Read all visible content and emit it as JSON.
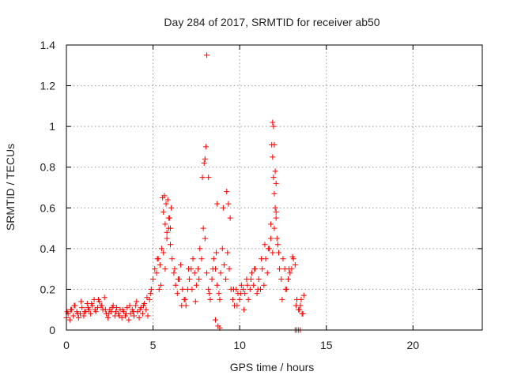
{
  "chart_data": {
    "type": "scatter",
    "title": "Day 284 of 2017, SRMTID for receiver ab50",
    "xlabel": "GPS time / hours",
    "ylabel": "SRMTID / TECUs",
    "xlim": [
      0,
      24
    ],
    "ylim": [
      0,
      1.4
    ],
    "xticks": [
      0,
      5,
      10,
      15,
      20
    ],
    "yticks": [
      0,
      0.2,
      0.4,
      0.6,
      0.8,
      1,
      1.2,
      1.4
    ],
    "xtick_labels": [
      "0",
      "5",
      "10",
      "15",
      "20"
    ],
    "ytick_labels": [
      "0",
      "0.2",
      "0.4",
      "0.6",
      "0.8",
      "1",
      "1.2",
      "1.4"
    ],
    "grid": true,
    "marker": "+",
    "color": "#ff0000",
    "series": [
      {
        "name": "SRMTID",
        "x": [
          0.0,
          0.1,
          0.2,
          0.3,
          0.4,
          0.5,
          0.6,
          0.7,
          0.8,
          0.9,
          1.0,
          1.1,
          1.2,
          1.3,
          1.4,
          1.5,
          1.6,
          1.7,
          1.8,
          1.9,
          2.0,
          2.1,
          2.2,
          2.3,
          2.4,
          2.5,
          2.6,
          2.7,
          2.8,
          2.9,
          3.0,
          3.1,
          3.2,
          3.3,
          3.4,
          3.5,
          3.6,
          3.7,
          3.8,
          3.9,
          4.0,
          4.1,
          4.2,
          4.3,
          4.4,
          4.5,
          4.6,
          4.7,
          4.8,
          4.9,
          5.0,
          5.1,
          5.2,
          5.3,
          5.4,
          5.5,
          5.6,
          5.7,
          5.8,
          5.9,
          6.0,
          6.1,
          6.2,
          6.3,
          6.4,
          6.5,
          6.6,
          6.7,
          6.8,
          6.9,
          7.0,
          7.1,
          7.2,
          7.3,
          7.4,
          7.5,
          7.6,
          7.7,
          7.8,
          7.9,
          8.0,
          8.1,
          8.2,
          8.3,
          8.4,
          8.5,
          8.6,
          8.7,
          8.8,
          8.9,
          9.0,
          9.1,
          9.2,
          9.3,
          9.4,
          9.5,
          9.6,
          9.7,
          9.8,
          9.9,
          10.0,
          10.1,
          10.2,
          10.3,
          10.4,
          10.5,
          10.6,
          10.7,
          10.8,
          10.9,
          11.0,
          11.1,
          11.2,
          11.3,
          11.4,
          11.5,
          11.6,
          11.7,
          11.8,
          11.9,
          12.0,
          12.1,
          12.2,
          12.3,
          12.4,
          12.5,
          12.6,
          12.7,
          12.8,
          12.9,
          13.0,
          13.1,
          13.2,
          13.3,
          13.4,
          13.5,
          13.6,
          13.7,
          0.05,
          0.25,
          0.45,
          0.65,
          0.85,
          1.05,
          1.25,
          1.45,
          1.65,
          1.85,
          2.05,
          2.25,
          2.45,
          2.65,
          2.85,
          3.05,
          3.25,
          3.45,
          3.65,
          3.85,
          4.05,
          4.25,
          4.45,
          4.65,
          4.85,
          5.55,
          5.65,
          5.75,
          5.85,
          5.95,
          6.05,
          5.6,
          5.7,
          5.8,
          5.9,
          6.0,
          7.85,
          7.95,
          8.05,
          8.0,
          8.1,
          8.2,
          8.7,
          9.05,
          9.25,
          9.35,
          9.45,
          11.9,
          11.95,
          12.0,
          12.05,
          12.1,
          11.85,
          11.9,
          11.95,
          12.0,
          12.05,
          12.1,
          11.8,
          12.15,
          5.25,
          5.35,
          5.45,
          6.25,
          6.45,
          6.65,
          6.85,
          7.05,
          7.25,
          7.45,
          7.65,
          8.25,
          8.45,
          8.65,
          8.85,
          9.65,
          9.85,
          10.05,
          10.25,
          10.45,
          10.65,
          10.85,
          11.05,
          11.25,
          11.45,
          11.65,
          12.25,
          12.45,
          12.65,
          12.85,
          13.05,
          13.25,
          13.45,
          13.55,
          13.65,
          8.6,
          8.75,
          8.85,
          13.2,
          13.3,
          13.4,
          13.5
        ],
        "y": [
          0.06,
          0.08,
          0.05,
          0.1,
          0.07,
          0.12,
          0.09,
          0.06,
          0.08,
          0.11,
          0.07,
          0.09,
          0.13,
          0.1,
          0.08,
          0.12,
          0.15,
          0.09,
          0.11,
          0.14,
          0.12,
          0.1,
          0.16,
          0.08,
          0.06,
          0.1,
          0.09,
          0.12,
          0.07,
          0.11,
          0.08,
          0.1,
          0.06,
          0.09,
          0.07,
          0.11,
          0.05,
          0.08,
          0.1,
          0.07,
          0.12,
          0.09,
          0.06,
          0.11,
          0.08,
          0.13,
          0.1,
          0.07,
          0.15,
          0.2,
          0.25,
          0.3,
          0.28,
          0.35,
          0.32,
          0.4,
          0.38,
          0.3,
          0.45,
          0.5,
          0.42,
          0.35,
          0.28,
          0.22,
          0.18,
          0.25,
          0.32,
          0.2,
          0.15,
          0.12,
          0.2,
          0.25,
          0.3,
          0.35,
          0.28,
          0.22,
          0.3,
          0.4,
          0.35,
          0.5,
          0.45,
          0.28,
          0.2,
          0.15,
          0.25,
          0.35,
          0.3,
          0.22,
          0.18,
          0.28,
          0.4,
          0.32,
          0.25,
          0.38,
          0.3,
          0.2,
          0.15,
          0.12,
          0.2,
          0.18,
          0.15,
          0.22,
          0.2,
          0.18,
          0.25,
          0.15,
          0.2,
          0.28,
          0.22,
          0.3,
          0.18,
          0.25,
          0.2,
          0.3,
          0.22,
          0.35,
          0.28,
          0.4,
          0.45,
          0.38,
          0.5,
          0.55,
          0.42,
          0.3,
          0.25,
          0.35,
          0.3,
          0.2,
          0.25,
          0.28,
          0.3,
          0.35,
          0.32,
          0.15,
          0.1,
          0.12,
          0.08,
          0.17,
          0.09,
          0.1,
          0.12,
          0.08,
          0.14,
          0.09,
          0.11,
          0.13,
          0.1,
          0.15,
          0.12,
          0.1,
          0.08,
          0.11,
          0.09,
          0.07,
          0.1,
          0.08,
          0.12,
          0.09,
          0.14,
          0.1,
          0.12,
          0.16,
          0.18,
          0.65,
          0.66,
          0.62,
          0.64,
          0.55,
          0.6,
          0.58,
          0.52,
          0.48,
          0.55,
          0.5,
          0.75,
          0.82,
          0.9,
          0.84,
          1.35,
          0.75,
          0.62,
          0.6,
          0.68,
          0.62,
          0.55,
          1.02,
          1.0,
          0.91,
          0.78,
          0.72,
          0.91,
          0.85,
          0.75,
          0.67,
          0.6,
          0.58,
          0.52,
          0.45,
          0.35,
          0.2,
          0.22,
          0.3,
          0.25,
          0.12,
          0.15,
          0.3,
          0.2,
          0.14,
          0.25,
          0.18,
          0.3,
          0.38,
          0.15,
          0.2,
          0.12,
          0.18,
          0.1,
          0.22,
          0.25,
          0.3,
          0.2,
          0.35,
          0.42,
          0.4,
          0.38,
          0.15,
          0.2,
          0.3,
          0.36,
          0.12,
          0.1,
          0.15,
          0.08,
          0.05,
          0.02,
          0.01,
          0.0,
          0.0,
          0.0,
          0.0
        ],
        "values_note": ""
      }
    ]
  }
}
